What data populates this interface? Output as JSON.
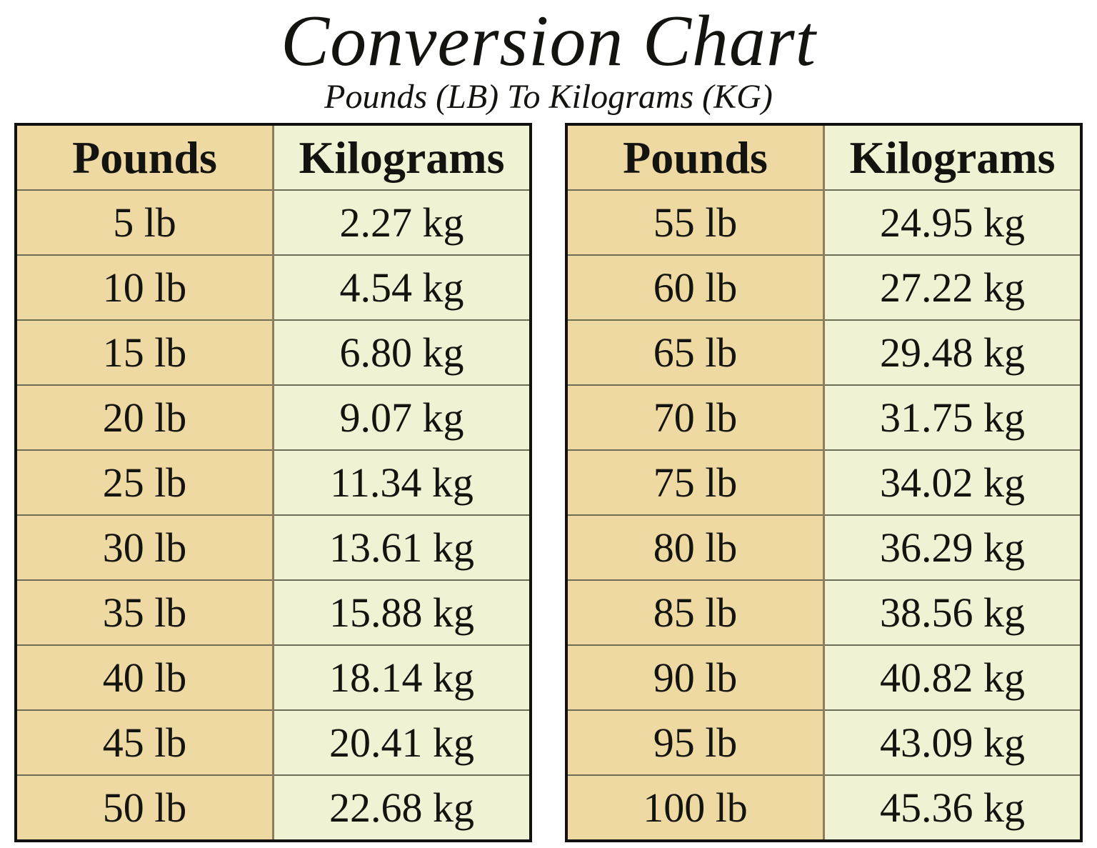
{
  "title": "Conversion Chart",
  "subtitle": "Pounds (LB) To Kilograms (KG)",
  "colors": {
    "pounds_column_bg": "#eed9a2",
    "kilograms_column_bg": "#f0f3d3",
    "outer_border": "#111111",
    "row_line": "#6d6d55",
    "column_line": "#8d7d5a",
    "text": "#131310",
    "page_bg": "#ffffff"
  },
  "tables": [
    {
      "headers": {
        "pounds": "Pounds",
        "kilograms": "Kilograms"
      },
      "rows": [
        {
          "lb": "5 lb",
          "kg": "2.27 kg"
        },
        {
          "lb": "10 lb",
          "kg": "4.54 kg"
        },
        {
          "lb": "15 lb",
          "kg": "6.80 kg"
        },
        {
          "lb": "20 lb",
          "kg": "9.07 kg"
        },
        {
          "lb": "25 lb",
          "kg": "11.34 kg"
        },
        {
          "lb": "30 lb",
          "kg": "13.61 kg"
        },
        {
          "lb": "35 lb",
          "kg": "15.88 kg"
        },
        {
          "lb": "40 lb",
          "kg": "18.14 kg"
        },
        {
          "lb": "45 lb",
          "kg": "20.41 kg"
        },
        {
          "lb": "50 lb",
          "kg": "22.68 kg"
        }
      ]
    },
    {
      "headers": {
        "pounds": "Pounds",
        "kilograms": "Kilograms"
      },
      "rows": [
        {
          "lb": "55 lb",
          "kg": "24.95 kg"
        },
        {
          "lb": "60 lb",
          "kg": "27.22 kg"
        },
        {
          "lb": "65 lb",
          "kg": "29.48 kg"
        },
        {
          "lb": "70 lb",
          "kg": "31.75 kg"
        },
        {
          "lb": "75 lb",
          "kg": "34.02 kg"
        },
        {
          "lb": "80 lb",
          "kg": "36.29 kg"
        },
        {
          "lb": "85 lb",
          "kg": "38.56 kg"
        },
        {
          "lb": "90 lb",
          "kg": "40.82 kg"
        },
        {
          "lb": "95 lb",
          "kg": "43.09 kg"
        },
        {
          "lb": "100 lb",
          "kg": "45.36 kg"
        }
      ]
    }
  ],
  "chart_data": {
    "type": "table",
    "title": "Conversion Chart",
    "subtitle": "Pounds (LB) To Kilograms (KG)",
    "columns": [
      "Pounds (lb)",
      "Kilograms (kg)"
    ],
    "rows": [
      [
        5,
        2.27
      ],
      [
        10,
        4.54
      ],
      [
        15,
        6.8
      ],
      [
        20,
        9.07
      ],
      [
        25,
        11.34
      ],
      [
        30,
        13.61
      ],
      [
        35,
        15.88
      ],
      [
        40,
        18.14
      ],
      [
        45,
        20.41
      ],
      [
        50,
        22.68
      ],
      [
        55,
        24.95
      ],
      [
        60,
        27.22
      ],
      [
        65,
        29.48
      ],
      [
        70,
        31.75
      ],
      [
        75,
        34.02
      ],
      [
        80,
        36.29
      ],
      [
        85,
        38.56
      ],
      [
        90,
        40.82
      ],
      [
        95,
        43.09
      ],
      [
        100,
        45.36
      ]
    ],
    "layout": "two side-by-side tables, rows 1-10 left, rows 11-20 right"
  }
}
